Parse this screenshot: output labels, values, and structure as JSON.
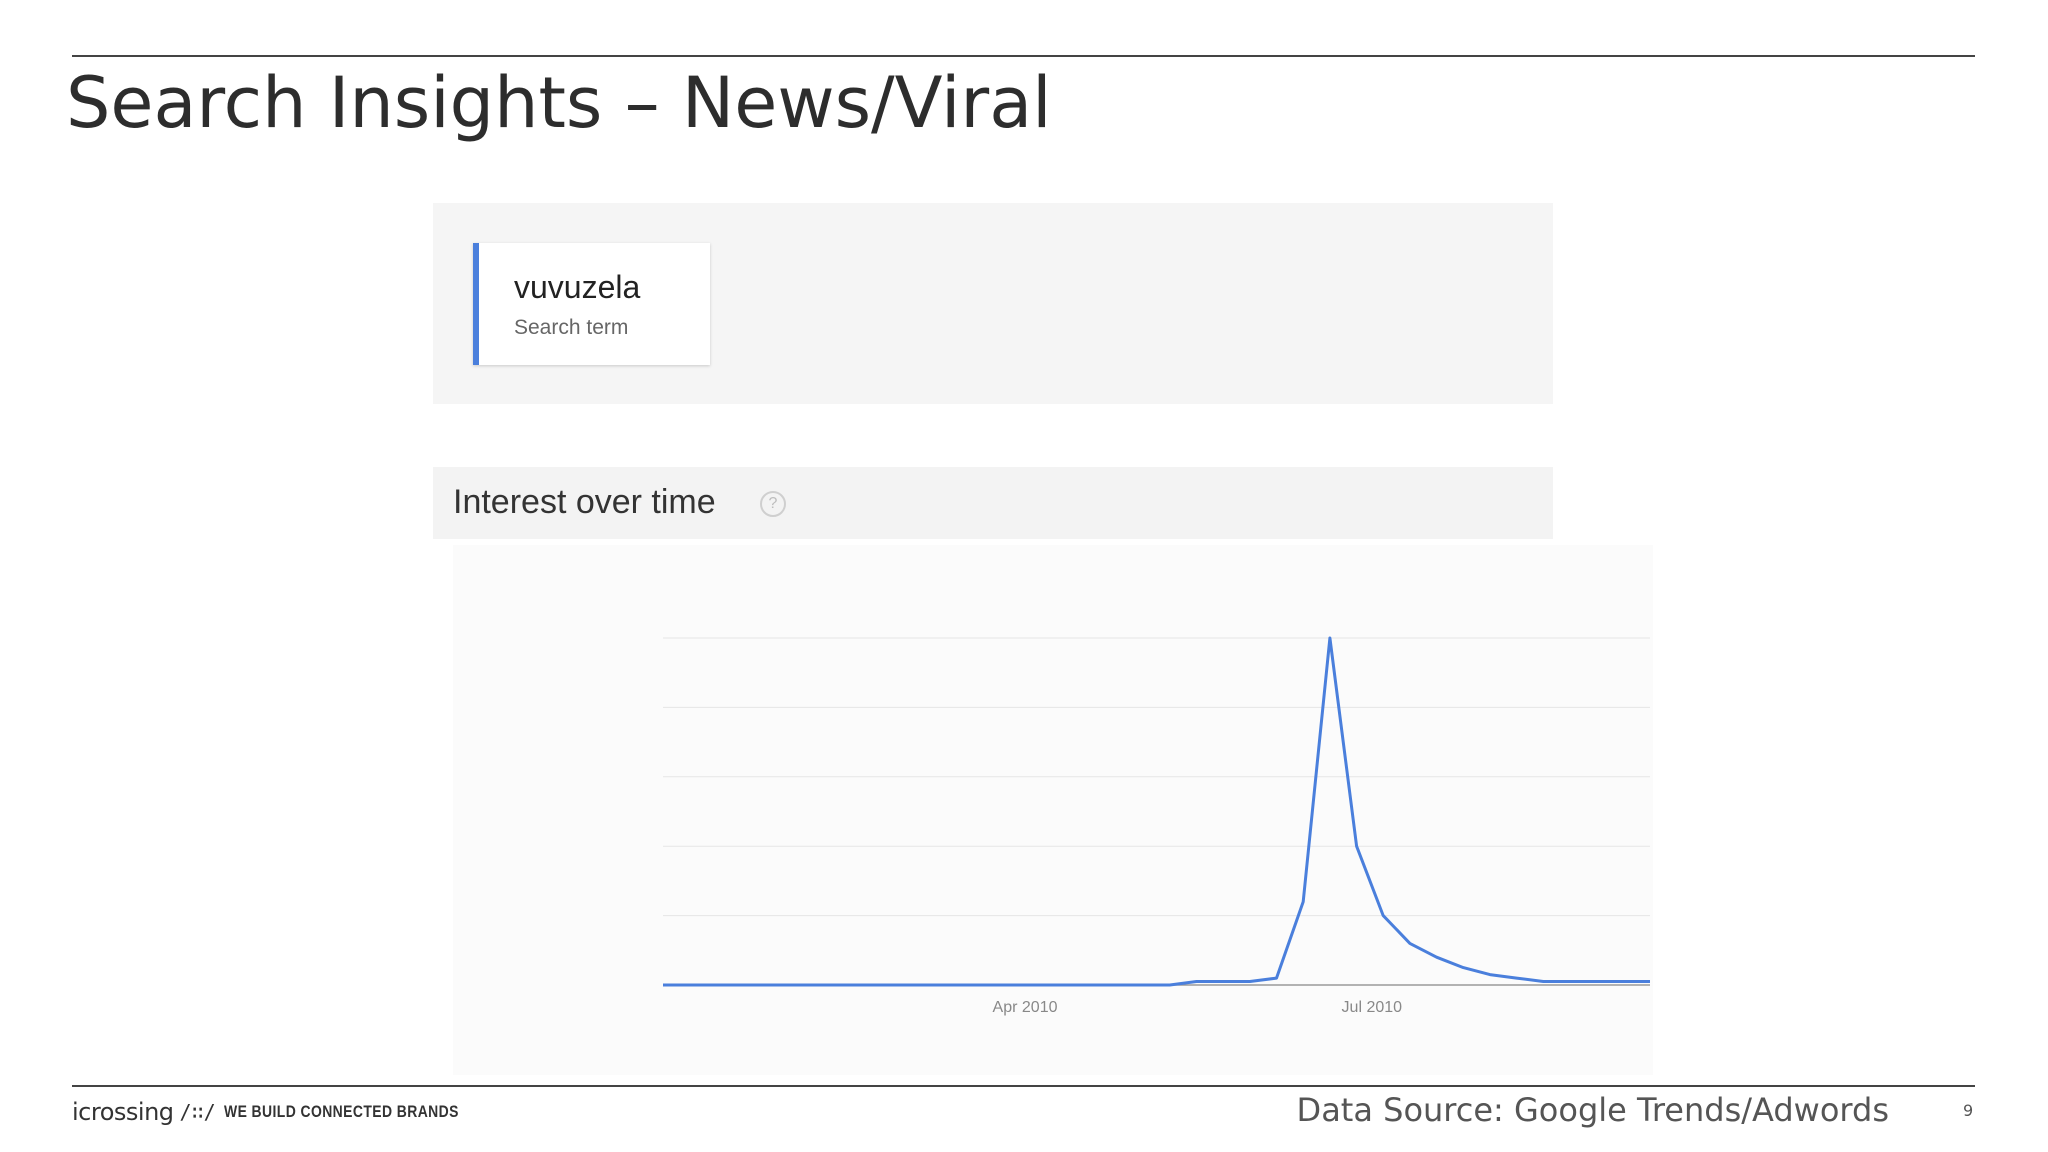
{
  "slide": {
    "title": "Search Insights – News/Viral",
    "data_source": "Data Source: Google Trends/Adwords",
    "page_number": "9"
  },
  "search_panel": {
    "term": "vuvuzela",
    "term_subtitle": "Search term",
    "accent_color": "#4a7fdc"
  },
  "interest_section": {
    "title": "Interest over time",
    "help_icon": "question-circle-icon",
    "help_glyph": "?"
  },
  "footer": {
    "logo_word": "icrossing",
    "logo_mark": "/∷/",
    "tagline": "WE BUILD CONNECTED BRANDS"
  },
  "chart_data": {
    "type": "line",
    "title": "",
    "xlabel": "",
    "ylabel": "",
    "x_tick_labels": [
      "Apr 2010",
      "Jul 2010"
    ],
    "x_tick_dates": [
      "2010-04-01",
      "2010-07-01"
    ],
    "ylim": [
      0,
      100
    ],
    "grid": true,
    "line_color": "#4a7fdc",
    "series": [
      {
        "x": [
          "2009-12-27",
          "2010-01-03",
          "2010-01-10",
          "2010-01-17",
          "2010-01-24",
          "2010-01-31",
          "2010-02-07",
          "2010-02-14",
          "2010-02-21",
          "2010-02-28",
          "2010-03-07",
          "2010-03-14",
          "2010-03-21",
          "2010-03-28",
          "2010-04-04",
          "2010-04-11",
          "2010-04-18",
          "2010-04-25",
          "2010-05-02",
          "2010-05-09",
          "2010-05-16",
          "2010-05-23",
          "2010-05-30",
          "2010-06-06",
          "2010-06-13",
          "2010-06-20",
          "2010-06-27",
          "2010-07-04",
          "2010-07-11",
          "2010-07-18",
          "2010-07-25",
          "2010-08-01",
          "2010-08-08",
          "2010-08-15",
          "2010-08-22",
          "2010-08-29",
          "2010-09-05",
          "2010-09-12"
        ],
        "values": [
          0,
          0,
          0,
          0,
          0,
          0,
          0,
          0,
          0,
          0,
          0,
          0,
          0,
          0,
          0,
          0,
          0,
          0,
          0,
          0,
          1,
          1,
          1,
          2,
          24,
          100,
          40,
          20,
          12,
          8,
          5,
          3,
          2,
          1,
          1,
          1,
          1,
          1
        ]
      }
    ]
  }
}
